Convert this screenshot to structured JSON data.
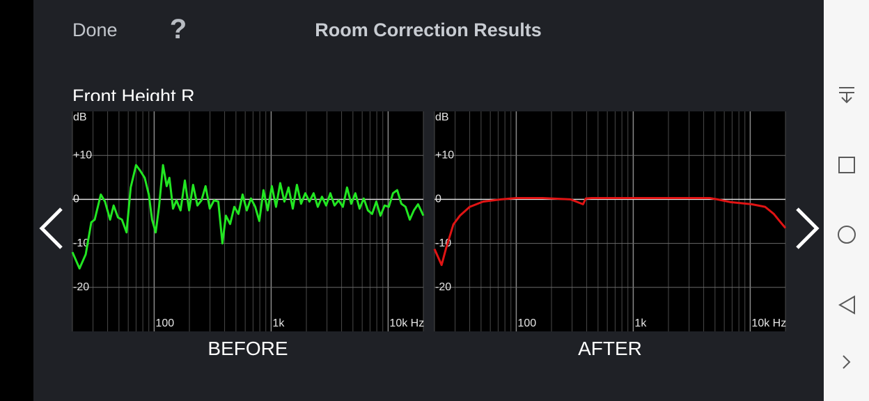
{
  "header": {
    "done": "Done",
    "help": "?",
    "title": "Room Correction Results"
  },
  "section": "Front Height R",
  "chart_data": [
    {
      "type": "line",
      "caption": "BEFORE",
      "y_label": "dB",
      "log_x": true,
      "grid": true,
      "xlim": [
        20,
        20000
      ],
      "ylim": [
        -30,
        20
      ],
      "xticks": [
        100,
        {
          "value": 1000,
          "label": "1k"
        },
        {
          "value": 10000,
          "label": "10k Hz"
        }
      ],
      "minor_xticks": [
        20,
        30,
        40,
        50,
        60,
        70,
        80,
        90,
        200,
        300,
        400,
        500,
        600,
        700,
        800,
        900,
        2000,
        3000,
        4000,
        5000,
        6000,
        7000,
        8000,
        9000,
        20000
      ],
      "yticks": [
        {
          "value": 10,
          "label": "+10"
        },
        0,
        -10,
        -20
      ],
      "x": [
        20,
        23,
        26,
        29,
        31,
        35,
        38,
        42,
        45,
        49,
        53,
        58,
        63,
        70,
        76,
        83,
        90,
        96,
        103,
        110,
        119,
        128,
        135,
        145,
        155,
        168,
        183,
        199,
        215,
        234,
        254,
        275,
        299,
        325,
        353,
        383,
        410,
        446,
        484,
        525,
        570,
        619,
        672,
        730,
        792,
        860,
        934,
        1014,
        1100,
        1195,
        1297,
        1409,
        1530,
        1660,
        1803,
        1958,
        2125,
        2307,
        2505,
        2720,
        2953,
        3206,
        3481,
        3779,
        4103,
        4455,
        4837,
        5250,
        5700,
        6190,
        6720,
        7295,
        7920,
        8600,
        9340,
        10140,
        11010,
        11950,
        12970,
        14090,
        15300,
        16600,
        18030,
        20000
      ],
      "series": [
        {
          "color": "#22e622",
          "values": [
            -12,
            -15.7,
            -12.5,
            -5.2,
            -4.6,
            1.1,
            -0.5,
            -4.6,
            -1.4,
            -4.1,
            -4.6,
            -7.5,
            2.7,
            7.8,
            6.5,
            4.9,
            1.1,
            -4.6,
            -7.5,
            -1.7,
            7.8,
            3.0,
            4.9,
            -2.1,
            -0.2,
            -2.5,
            4.3,
            -2.5,
            3.3,
            -1.4,
            -0.2,
            3.0,
            -2.1,
            -0.2,
            -0.5,
            -10,
            -3.7,
            -5.6,
            -1.7,
            -3.3,
            1.1,
            -2.5,
            0.2,
            -1.7,
            -4.9,
            2.1,
            -2.5,
            3.0,
            -1.7,
            3.7,
            -0.5,
            2.7,
            -2.1,
            3.3,
            -1.0,
            1.4,
            -0.5,
            1.4,
            -1.7,
            0.6,
            -1.4,
            1.4,
            -1.4,
            -0.2,
            -1.7,
            2.7,
            -1.0,
            1.4,
            -2.1,
            0.2,
            -2.5,
            -3.3,
            -0.5,
            -3.7,
            -1.4,
            -1.7,
            1.4,
            2.1,
            -1.0,
            -1.7,
            -4.6,
            -2.5,
            -1.1,
            -3.7
          ]
        }
      ]
    },
    {
      "type": "line",
      "caption": "AFTER",
      "y_label": "dB",
      "log_x": true,
      "grid": true,
      "xlim": [
        20,
        20000
      ],
      "ylim": [
        -30,
        20
      ],
      "xticks": [
        100,
        {
          "value": 1000,
          "label": "1k"
        },
        {
          "value": 10000,
          "label": "10k Hz"
        }
      ],
      "minor_xticks": [
        20,
        30,
        40,
        50,
        60,
        70,
        80,
        90,
        200,
        300,
        400,
        500,
        600,
        700,
        800,
        900,
        2000,
        3000,
        4000,
        5000,
        6000,
        7000,
        8000,
        9000,
        20000
      ],
      "yticks": [
        {
          "value": 10,
          "label": "+10"
        },
        0,
        -10,
        -20
      ],
      "x": [
        20,
        23,
        25,
        29,
        33,
        40,
        52,
        74,
        100,
        168,
        291,
        372,
        393,
        440,
        1150,
        4500,
        5250,
        6720,
        10300,
        13400,
        15900,
        17800,
        20000
      ],
      "series": [
        {
          "color": "#e01414",
          "values": [
            -11.3,
            -14.9,
            -11.3,
            -5.7,
            -3.7,
            -1.7,
            -0.5,
            0,
            0.3,
            0.3,
            0,
            -1.1,
            0.2,
            0.3,
            0.3,
            0.3,
            0,
            -0.6,
            -1.1,
            -1.7,
            -3.3,
            -4.9,
            -6.5
          ]
        }
      ]
    }
  ]
}
